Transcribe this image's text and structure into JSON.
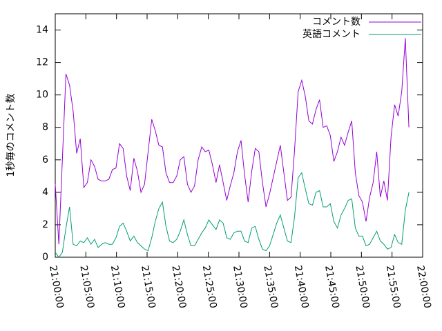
{
  "chart_data": {
    "type": "line",
    "y_label": "1秒毎のコメント数",
    "x": [
      "21:00:00",
      "21:00:35",
      "21:01:10",
      "21:01:45",
      "21:02:20",
      "21:02:55",
      "21:03:30",
      "21:04:05",
      "21:04:40",
      "21:05:15",
      "21:05:50",
      "21:06:25",
      "21:07:00",
      "21:07:35",
      "21:08:10",
      "21:08:45",
      "21:09:20",
      "21:09:55",
      "21:10:30",
      "21:11:05",
      "21:11:40",
      "21:12:15",
      "21:12:50",
      "21:13:25",
      "21:14:00",
      "21:14:35",
      "21:15:10",
      "21:15:45",
      "21:16:20",
      "21:16:55",
      "21:17:30",
      "21:18:05",
      "21:18:40",
      "21:19:15",
      "21:19:50",
      "21:20:25",
      "21:21:00",
      "21:21:35",
      "21:22:10",
      "21:22:45",
      "21:23:20",
      "21:23:55",
      "21:24:30",
      "21:25:05",
      "21:25:40",
      "21:26:15",
      "21:26:50",
      "21:27:25",
      "21:28:00",
      "21:28:35",
      "21:29:10",
      "21:29:45",
      "21:30:20",
      "21:30:55",
      "21:31:30",
      "21:32:05",
      "21:32:40",
      "21:33:15",
      "21:33:50",
      "21:34:25",
      "21:35:00",
      "21:35:35",
      "21:36:10",
      "21:36:45",
      "21:37:20",
      "21:37:55",
      "21:38:30",
      "21:39:05",
      "21:39:40",
      "21:40:15",
      "21:40:50",
      "21:41:25",
      "21:42:00",
      "21:42:35",
      "21:43:10",
      "21:43:45",
      "21:44:20",
      "21:44:55",
      "21:45:30",
      "21:46:05",
      "21:46:40",
      "21:47:15",
      "21:47:50",
      "21:48:25",
      "21:49:00",
      "21:49:35",
      "21:50:10",
      "21:50:45",
      "21:51:20",
      "21:51:55",
      "21:52:30",
      "21:53:05",
      "21:53:40",
      "21:54:15",
      "21:54:50",
      "21:55:25",
      "21:56:00",
      "21:56:35",
      "21:57:10",
      "21:57:45"
    ],
    "series": [
      {
        "name": "コメント数",
        "color": "#9400d3",
        "values": [
          4.5,
          0.8,
          6,
          11.3,
          10.6,
          9,
          6.4,
          7.3,
          4.3,
          4.6,
          6,
          5.6,
          4.8,
          4.7,
          4.7,
          4.8,
          5.4,
          5.5,
          7,
          6.7,
          5,
          4.1,
          6.1,
          5.3,
          4,
          4.5,
          6.5,
          8.5,
          7.8,
          6.9,
          6.8,
          5.2,
          4.6,
          4.6,
          5,
          6,
          6.2,
          4.5,
          4,
          4.4,
          6,
          6.8,
          6.5,
          6.6,
          5.7,
          4.6,
          5.7,
          4.6,
          3.5,
          4.4,
          5.2,
          6.5,
          7.2,
          5.1,
          3.4,
          5.3,
          6.7,
          6.5,
          4.6,
          3.1,
          3.9,
          4.9,
          5.9,
          6.9,
          5.2,
          3.5,
          3.7,
          6.6,
          10.2,
          10.9,
          9.9,
          8.4,
          8.2,
          9.1,
          9.7,
          8,
          8.1,
          7.5,
          5.9,
          6.5,
          7.4,
          6.9,
          7.7,
          8.4,
          5.2,
          3.8,
          3.4,
          2.2,
          3.7,
          4.6,
          6.5,
          3.7,
          4.7,
          3.5,
          7.4,
          9.4,
          8.7,
          10.2,
          13.5,
          8
        ]
      },
      {
        "name": "英語コメント",
        "color": "#009e73",
        "values": [
          0.3,
          0,
          0.3,
          1.8,
          3.1,
          0.8,
          0.7,
          1,
          0.9,
          1.2,
          0.8,
          1.1,
          0.6,
          0.8,
          0.9,
          0.8,
          0.8,
          1.2,
          1.9,
          2.1,
          1.6,
          1,
          1.3,
          0.9,
          0.7,
          0.5,
          0.4,
          1.2,
          2.2,
          3,
          3.4,
          1.9,
          1,
          0.9,
          1.1,
          1.6,
          2.3,
          1.4,
          0.7,
          0.7,
          1.1,
          1.5,
          1.8,
          2.3,
          2,
          1.7,
          2.3,
          2.1,
          1.2,
          1.1,
          1.5,
          1.6,
          1.6,
          1,
          0.9,
          1.8,
          1.9,
          1.1,
          0.5,
          0.4,
          0.7,
          1.4,
          2.1,
          2.6,
          1.8,
          1,
          0.9,
          2.5,
          4.9,
          5.2,
          4.2,
          3.3,
          3.2,
          4,
          4.1,
          3.1,
          3.1,
          3.3,
          2.2,
          1.8,
          2.6,
          3,
          3.5,
          3.6,
          1.8,
          1.3,
          1.3,
          0.7,
          0.8,
          1.2,
          1.6,
          1,
          0.8,
          0.5,
          0.6,
          1.4,
          0.9,
          0.8,
          2.9,
          4
        ]
      }
    ],
    "xlim": [
      "21:00:00",
      "22:00:00"
    ],
    "xticks": [
      "21:00:00",
      "21:05:00",
      "21:10:00",
      "21:15:00",
      "21:20:00",
      "21:25:00",
      "21:30:00",
      "21:35:00",
      "21:40:00",
      "21:45:00",
      "21:50:00",
      "21:55:00",
      "22:00:00"
    ],
    "ylim": [
      0,
      15
    ],
    "yticks": [
      0,
      2,
      4,
      6,
      8,
      10,
      12,
      14
    ],
    "legend": "top right",
    "grid": false
  }
}
